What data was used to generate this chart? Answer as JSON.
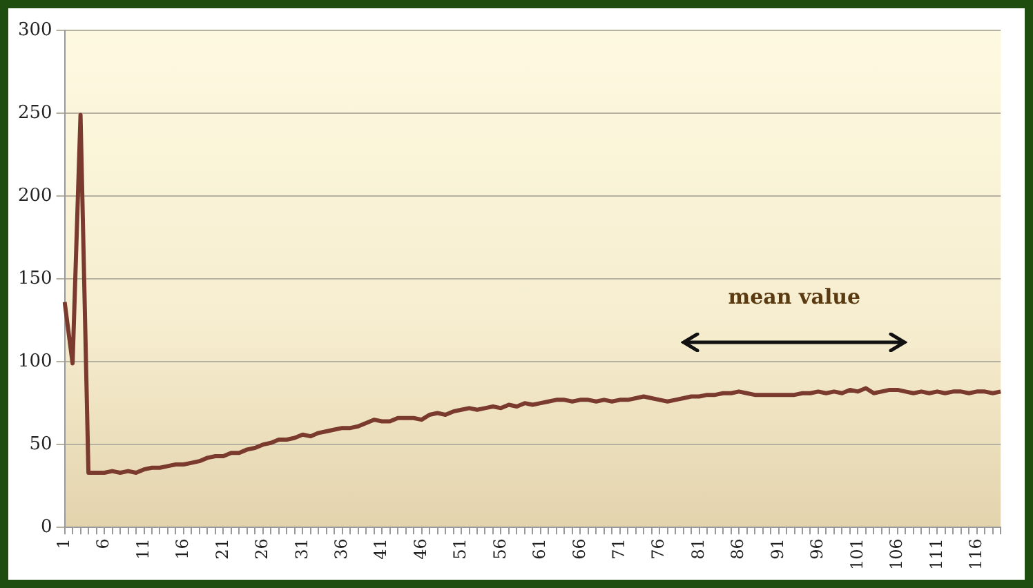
{
  "chart_data": {
    "type": "line",
    "categories": [
      "1",
      null,
      null,
      null,
      null,
      "6",
      null,
      null,
      null,
      null,
      "11",
      null,
      null,
      null,
      null,
      "16",
      null,
      null,
      null,
      null,
      "21",
      null,
      null,
      null,
      null,
      "26",
      null,
      null,
      null,
      null,
      "31",
      null,
      null,
      null,
      null,
      "36",
      null,
      null,
      null,
      null,
      "41",
      null,
      null,
      null,
      null,
      "46",
      null,
      null,
      null,
      null,
      "51",
      null,
      null,
      null,
      null,
      "56",
      null,
      null,
      null,
      null,
      "61",
      null,
      null,
      null,
      null,
      "66",
      null,
      null,
      null,
      null,
      "71",
      null,
      null,
      null,
      null,
      "76",
      null,
      null,
      null,
      null,
      "81",
      null,
      null,
      null,
      null,
      "86",
      null,
      null,
      null,
      null,
      "91",
      null,
      null,
      null,
      null,
      "96",
      null,
      null,
      null,
      null,
      "101",
      null,
      null,
      null,
      null,
      "106",
      null,
      null,
      null,
      null,
      "111",
      null,
      null,
      null,
      null,
      "116",
      null,
      null,
      null
    ],
    "series": [
      {
        "color": "#7b3a2e",
        "values": [
          136,
          99,
          249,
          33,
          33,
          33,
          34,
          33,
          34,
          33,
          35,
          36,
          36,
          37,
          38,
          38,
          39,
          40,
          42,
          43,
          43,
          45,
          45,
          47,
          48,
          50,
          51,
          53,
          53,
          54,
          56,
          55,
          57,
          58,
          59,
          60,
          60,
          61,
          63,
          65,
          64,
          64,
          66,
          66,
          66,
          65,
          68,
          69,
          68,
          70,
          71,
          72,
          71,
          72,
          73,
          72,
          74,
          73,
          75,
          74,
          75,
          76,
          77,
          77,
          76,
          77,
          77,
          76,
          77,
          76,
          77,
          77,
          78,
          79,
          78,
          77,
          76,
          77,
          78,
          79,
          79,
          80,
          80,
          81,
          81,
          82,
          81,
          80,
          80,
          80,
          80,
          80,
          80,
          81,
          81,
          82,
          81,
          82,
          81,
          83,
          82,
          84,
          81,
          82,
          83,
          83,
          82,
          81,
          82,
          81,
          82,
          81,
          82,
          82,
          81,
          82,
          82,
          81,
          82
        ]
      }
    ],
    "ylim": [
      0,
      300
    ],
    "yticks": [
      0,
      50,
      100,
      150,
      200,
      250,
      300
    ],
    "grid": "y",
    "legend": false,
    "marker": "none",
    "line_style": "solid",
    "annotations": [
      "mean value"
    ]
  }
}
